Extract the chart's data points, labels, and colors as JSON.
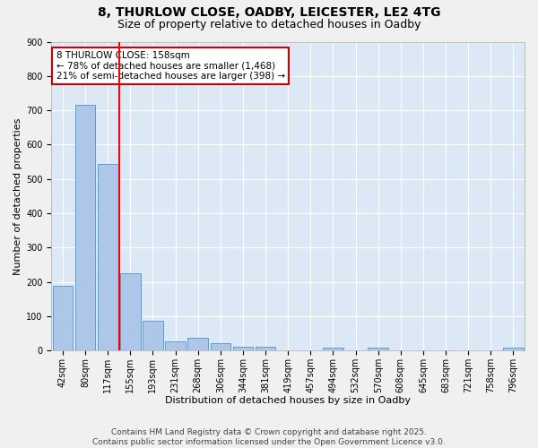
{
  "title_line1": "8, THURLOW CLOSE, OADBY, LEICESTER, LE2 4TG",
  "title_line2": "Size of property relative to detached houses in Oadby",
  "xlabel": "Distribution of detached houses by size in Oadby",
  "ylabel": "Number of detached properties",
  "categories": [
    "42sqm",
    "80sqm",
    "117sqm",
    "155sqm",
    "193sqm",
    "231sqm",
    "268sqm",
    "306sqm",
    "344sqm",
    "381sqm",
    "419sqm",
    "457sqm",
    "494sqm",
    "532sqm",
    "570sqm",
    "608sqm",
    "645sqm",
    "683sqm",
    "721sqm",
    "758sqm",
    "796sqm"
  ],
  "values": [
    190,
    715,
    545,
    225,
    88,
    28,
    38,
    22,
    12,
    12,
    0,
    0,
    8,
    0,
    8,
    0,
    0,
    0,
    0,
    0,
    8
  ],
  "bar_color": "#aec6e8",
  "bar_edge_color": "#5a9fd4",
  "background_color": "#dce8f5",
  "fig_background_color": "#f0f0f0",
  "grid_color": "#ffffff",
  "red_line_index": 3,
  "annotation_title": "8 THURLOW CLOSE: 158sqm",
  "annotation_line2": "← 78% of detached houses are smaller (1,468)",
  "annotation_line3": "21% of semi-detached houses are larger (398) →",
  "annotation_box_color": "#cc0000",
  "ylim": [
    0,
    900
  ],
  "yticks": [
    0,
    100,
    200,
    300,
    400,
    500,
    600,
    700,
    800,
    900
  ],
  "footer_line1": "Contains HM Land Registry data © Crown copyright and database right 2025.",
  "footer_line2": "Contains public sector information licensed under the Open Government Licence v3.0.",
  "title_fontsize": 10,
  "subtitle_fontsize": 9,
  "axis_label_fontsize": 8,
  "tick_fontsize": 7,
  "annotation_fontsize": 7.5,
  "footer_fontsize": 6.5
}
